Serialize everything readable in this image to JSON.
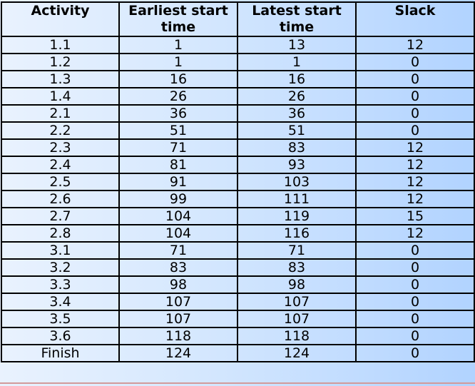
{
  "table": {
    "headers": [
      "Activity",
      "Earliest start time",
      "Latest start time",
      "Slack"
    ],
    "rows": [
      [
        "1.1",
        "1",
        "13",
        "12"
      ],
      [
        "1.2",
        "1",
        "1",
        "0"
      ],
      [
        "1.3",
        "16",
        "16",
        "0"
      ],
      [
        "1.4",
        "26",
        "26",
        "0"
      ],
      [
        "2.1",
        "36",
        "36",
        "0"
      ],
      [
        "2.2",
        "51",
        "51",
        "0"
      ],
      [
        "2.3",
        "71",
        "83",
        "12"
      ],
      [
        "2.4",
        "81",
        "93",
        "12"
      ],
      [
        "2.5",
        "91",
        "103",
        "12"
      ],
      [
        "2.6",
        "99",
        "111",
        "12"
      ],
      [
        "2.7",
        "104",
        "119",
        "15"
      ],
      [
        "2.8",
        "104",
        "116",
        "12"
      ],
      [
        "3.1",
        "71",
        "71",
        "0"
      ],
      [
        "3.2",
        "83",
        "83",
        "0"
      ],
      [
        "3.3",
        "98",
        "98",
        "0"
      ],
      [
        "3.4",
        "107",
        "107",
        "0"
      ],
      [
        "3.5",
        "107",
        "107",
        "0"
      ],
      [
        "3.6",
        "118",
        "118",
        "0"
      ],
      [
        "Finish",
        "124",
        "124",
        "0"
      ]
    ]
  },
  "colors": {
    "grid": "#000000",
    "background_light": "#e9f2fe",
    "background_dark": "#b1d3ff"
  }
}
